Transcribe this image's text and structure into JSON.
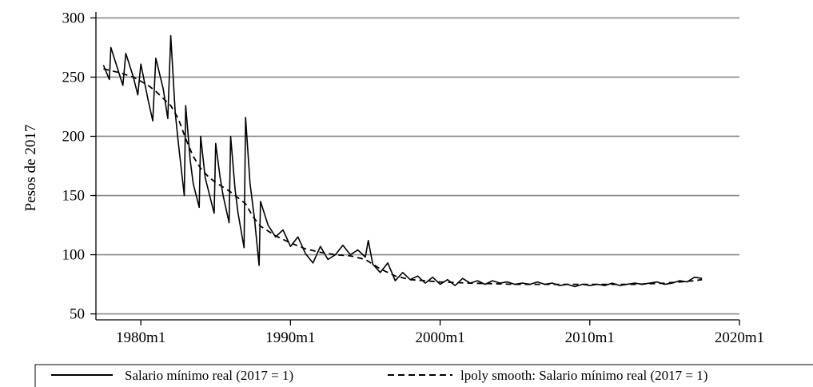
{
  "chart_data": {
    "type": "line",
    "title": "",
    "xlabel": "",
    "ylabel": "Pesos de 2017",
    "x_ticks": [
      "1980m1",
      "1990m1",
      "2000m1",
      "2010m1",
      "2020m1"
    ],
    "y_ticks": [
      "50",
      "100",
      "150",
      "200",
      "250",
      "300"
    ],
    "xlim": [
      1977.0,
      2020.0
    ],
    "ylim": [
      45,
      305
    ],
    "grid": "horizontal",
    "legend_placement": "bottom",
    "series": [
      {
        "name": "Salario mínimo real (2017 = 1)",
        "style": "solid",
        "x": [
          1977.5,
          1977.9,
          1978.0,
          1978.5,
          1978.8,
          1979.0,
          1979.5,
          1979.8,
          1980.0,
          1980.5,
          1980.8,
          1981.0,
          1981.5,
          1981.8,
          1982.0,
          1982.3,
          1982.5,
          1982.9,
          1983.0,
          1983.3,
          1983.5,
          1983.9,
          1984.0,
          1984.3,
          1984.5,
          1984.9,
          1985.0,
          1985.3,
          1985.5,
          1985.9,
          1986.0,
          1986.3,
          1986.5,
          1986.9,
          1987.0,
          1987.3,
          1987.6,
          1987.9,
          1988.0,
          1988.5,
          1989.0,
          1989.5,
          1990.0,
          1990.5,
          1991.0,
          1991.5,
          1992.0,
          1992.5,
          1993.0,
          1993.5,
          1994.0,
          1994.5,
          1995.0,
          1995.2,
          1995.5,
          1996.0,
          1996.5,
          1997.0,
          1997.5,
          1998.0,
          1998.5,
          1999.0,
          1999.5,
          2000.0,
          2000.5,
          2001.0,
          2001.5,
          2002.0,
          2002.5,
          2003.0,
          2003.5,
          2004.0,
          2004.5,
          2005.0,
          2005.5,
          2006.0,
          2006.5,
          2007.0,
          2007.5,
          2008.0,
          2008.5,
          2009.0,
          2009.5,
          2010.0,
          2010.5,
          2011.0,
          2011.5,
          2012.0,
          2012.5,
          2013.0,
          2013.5,
          2014.0,
          2014.5,
          2015.0,
          2015.5,
          2016.0,
          2016.5,
          2017.0,
          2017.5
        ],
        "y": [
          260,
          248,
          275,
          255,
          243,
          270,
          250,
          235,
          261,
          230,
          213,
          266,
          240,
          215,
          285,
          220,
          195,
          150,
          226,
          180,
          160,
          140,
          200,
          165,
          155,
          135,
          194,
          165,
          150,
          127,
          200,
          155,
          135,
          106,
          216,
          160,
          130,
          91,
          145,
          125,
          115,
          121,
          107,
          115,
          101,
          93,
          107,
          96,
          100,
          108,
          100,
          104,
          98,
          112,
          92,
          85,
          93,
          78,
          85,
          79,
          82,
          76,
          81,
          75,
          79,
          74,
          80,
          76,
          78,
          75,
          78,
          76,
          77,
          75,
          76,
          75,
          77,
          75,
          76,
          74,
          75,
          73,
          75,
          74,
          75,
          74,
          76,
          74,
          75,
          76,
          75,
          76,
          77,
          75,
          76,
          78,
          77,
          81,
          80
        ]
      },
      {
        "name": "lpoly smooth: Salario mínimo real (2017 = 1)",
        "style": "dashed",
        "x": [
          1977.5,
          1978.5,
          1979.5,
          1980.5,
          1981.0,
          1981.5,
          1982.0,
          1982.5,
          1983.0,
          1983.5,
          1984.0,
          1984.5,
          1985.0,
          1986.0,
          1987.0,
          1987.5,
          1988.0,
          1989.0,
          1990.0,
          1991.0,
          1992.0,
          1993.0,
          1994.0,
          1995.0,
          1996.0,
          1997.0,
          1998.0,
          1999.0,
          2000.0,
          2002.0,
          2005.0,
          2008.0,
          2010.0,
          2013.0,
          2015.0,
          2017.0,
          2017.5
        ],
        "y": [
          257,
          254,
          250,
          243,
          238,
          232,
          226,
          215,
          198,
          183,
          173,
          166,
          161,
          153,
          143,
          132,
          124,
          116,
          110,
          105,
          102,
          100,
          99,
          96,
          88,
          82,
          79,
          78,
          77,
          76,
          75,
          75,
          75,
          75,
          76,
          78,
          79
        ]
      }
    ]
  }
}
